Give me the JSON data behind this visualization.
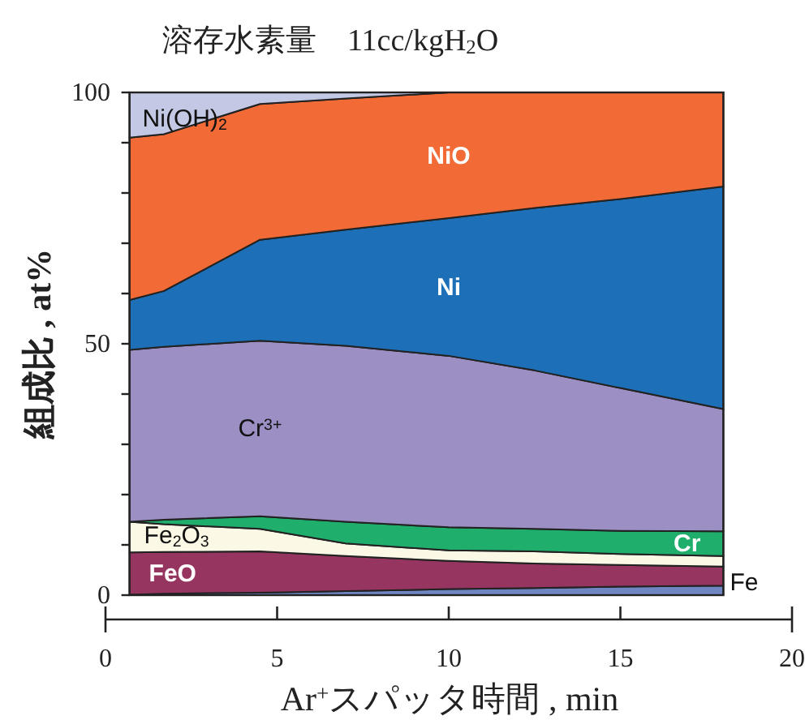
{
  "chart_data": {
    "type": "area",
    "stacked": true,
    "title": "溶存水素量　11cc/kgH$_{2}$O",
    "xlabel": "Ar$^{+}$スパッタ時間 , min",
    "ylabel": "組成比 , at%",
    "x": [
      0.7,
      1.7,
      4.5,
      7,
      10,
      12.5,
      15,
      18
    ],
    "xlim": [
      0,
      20
    ],
    "ylim": [
      0,
      100
    ],
    "xticks": [
      0,
      5,
      10,
      15,
      20
    ],
    "yticks": [
      0,
      {
        "value": 10,
        "label": null
      },
      {
        "value": 20,
        "label": null
      },
      {
        "value": 30,
        "label": null
      },
      {
        "value": 40,
        "label": null
      },
      50,
      {
        "value": 60,
        "label": null
      },
      {
        "value": 70,
        "label": null
      },
      {
        "value": 80,
        "label": null
      },
      {
        "value": 90,
        "label": null
      },
      100
    ],
    "series": [
      {
        "name": "Fe",
        "color": "#6f86c2",
        "values": [
          0.1,
          0.3,
          0.5,
          0.8,
          1.2,
          1.4,
          1.7,
          1.9
        ]
      },
      {
        "name": "FeO",
        "color": "#953560",
        "values": [
          8.4,
          8.3,
          8.2,
          7.0,
          5.6,
          4.9,
          4.3,
          3.8
        ]
      },
      {
        "name": "Fe$_{2}$O$_{3}$",
        "color": "#fbf8e6",
        "values": [
          6.1,
          5.5,
          4.5,
          2.5,
          2.1,
          2.4,
          2.2,
          2.1
        ]
      },
      {
        "name": "Cr",
        "color": "#1fae6b",
        "values": [
          0,
          0.9,
          2.5,
          4.3,
          4.6,
          4.5,
          4.6,
          4.9
        ]
      },
      {
        "name": "Cr$^{3+}$",
        "color": "#9c8fc4",
        "values": [
          34.2,
          34.4,
          34.9,
          35.0,
          34.1,
          31.5,
          28.4,
          24.3
        ]
      },
      {
        "name": "Ni",
        "color": "#1d70b8",
        "values": [
          9.9,
          11.1,
          20.1,
          23.1,
          27.4,
          32.3,
          37.6,
          44.3
        ]
      },
      {
        "name": "NiO",
        "color": "#f26a35",
        "values": [
          32.3,
          31.2,
          27.0,
          26.1,
          25.0,
          23.0,
          21.2,
          18.7
        ]
      },
      {
        "name": "Ni(OH)$_{2}$",
        "color": "#c3c8e4",
        "values": [
          9.0,
          8.3,
          2.3,
          1.2,
          0,
          0,
          0,
          0
        ]
      }
    ]
  }
}
